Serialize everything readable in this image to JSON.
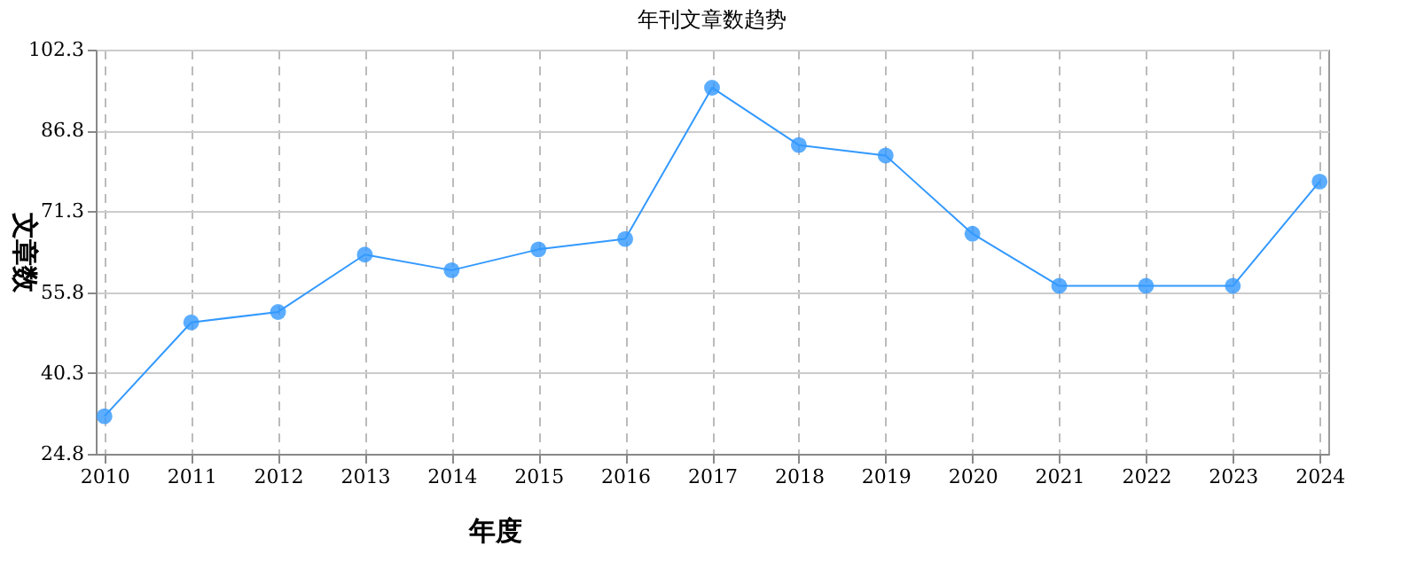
{
  "chart_data": {
    "type": "line",
    "title": "年刊文章数趋势",
    "xlabel": "年度",
    "ylabel": "文章数",
    "categories": [
      "2010",
      "2011",
      "2012",
      "2013",
      "2014",
      "2015",
      "2016",
      "2017",
      "2018",
      "2019",
      "2020",
      "2021",
      "2022",
      "2023",
      "2024"
    ],
    "series": [
      {
        "color": "#3399ff",
        "values": [
          32,
          50,
          52,
          63,
          60,
          64,
          66,
          95,
          84,
          82,
          67,
          57,
          57,
          57,
          77
        ]
      }
    ],
    "ylim": [
      24.8,
      102.3
    ],
    "yticks": [
      24.8,
      40.3,
      55.8,
      71.3,
      86.8,
      102.3
    ],
    "grid": true,
    "marker": "circle",
    "line_style": "solid"
  }
}
